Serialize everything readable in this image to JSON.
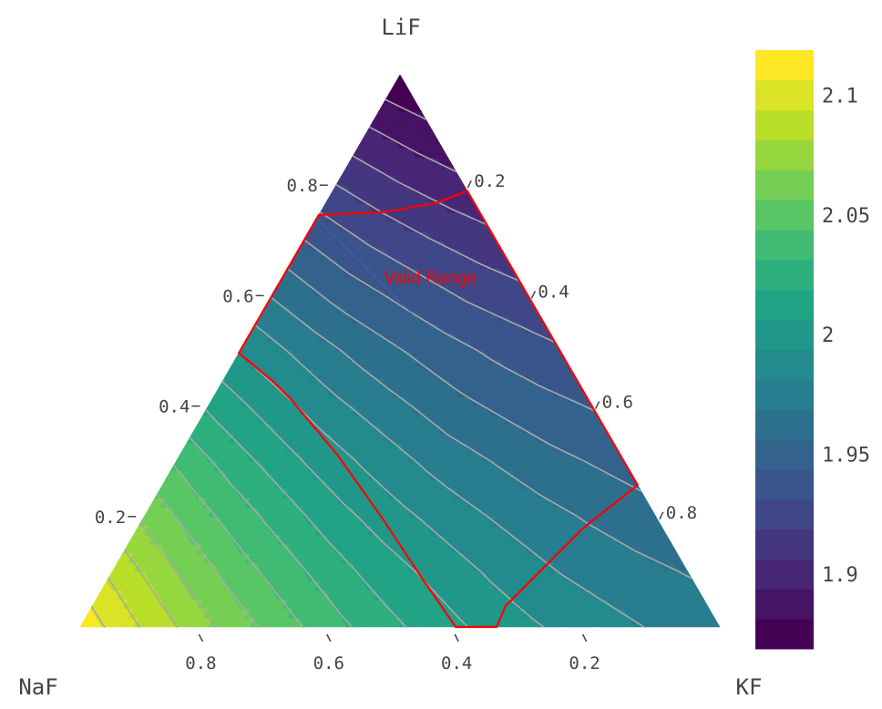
{
  "chart_data": {
    "type": "ternary-contour",
    "axes": {
      "top": {
        "title": "LiF",
        "ticks": [
          0.2,
          0.4,
          0.6,
          0.8
        ],
        "tick_labels": [
          "0.2",
          "0.4",
          "0.6",
          "0.8"
        ]
      },
      "left": {
        "title": "NaF",
        "ticks": [
          0.8,
          0.6,
          0.4,
          0.2
        ],
        "tick_labels": [
          "0.8",
          "0.6",
          "0.4",
          "0.2"
        ]
      },
      "right": {
        "title": "KF",
        "ticks": [
          0.2,
          0.4,
          0.6,
          0.8
        ],
        "tick_labels": [
          "0.2",
          "0.4",
          "0.6",
          "0.8"
        ]
      }
    },
    "field": {
      "grid_step": 0.1,
      "description_of_rows": "rows indexed by LiF fraction 0..1, columns by KF fraction 0..(1-LiF); NaF = 1 - LiF - KF",
      "values": [
        [
          2.115,
          2.092,
          2.071,
          2.052,
          2.035,
          2.02,
          2.007,
          1.996,
          1.987,
          1.98,
          1.975
        ],
        [
          2.091,
          2.069,
          2.049,
          2.032,
          2.016,
          2.003,
          1.991,
          1.981,
          1.974,
          1.968
        ],
        [
          2.066,
          2.046,
          2.028,
          2.011,
          1.997,
          1.985,
          1.975,
          1.967,
          1.96
        ],
        [
          2.042,
          2.023,
          2.006,
          1.991,
          1.978,
          1.968,
          1.959,
          1.952
        ],
        [
          2.017,
          2.0,
          1.984,
          1.971,
          1.959,
          1.95,
          1.943
        ],
        [
          1.993,
          1.977,
          1.963,
          1.951,
          1.941,
          1.933
        ],
        [
          1.968,
          1.953,
          1.941,
          1.93,
          1.922
        ],
        [
          1.944,
          1.93,
          1.919,
          1.91
        ],
        [
          1.919,
          1.907,
          1.897
        ],
        [
          1.895,
          1.884
        ],
        [
          1.87
        ]
      ]
    },
    "contours": {
      "start": 1.8688,
      "end": 2.1188,
      "levels": 20,
      "colorscale": "Viridis",
      "line_color": "#a8a8a8"
    },
    "colorbar": {
      "range": [
        1.8688,
        2.1188
      ],
      "ticks": [
        1.9,
        1.95,
        2,
        2.05,
        2.1
      ],
      "tick_labels": [
        "1.9",
        "1.95",
        "2",
        "2.05",
        "2.1"
      ]
    },
    "valid_range": {
      "label": "Valid Range",
      "color": "#ff0000",
      "boundary": [
        {
          "LiF": 0.746,
          "KF": 0.0,
          "NaF": 0.254
        },
        {
          "LiF": 0.751,
          "KF": 0.097,
          "NaF": 0.152
        },
        {
          "LiF": 0.768,
          "KF": 0.174,
          "NaF": 0.058
        },
        {
          "LiF": 0.79,
          "KF": 0.21,
          "NaF": 0.0
        },
        {
          "LiF": 0.257,
          "KF": 0.743,
          "NaF": 0.0
        },
        {
          "LiF": 0.179,
          "KF": 0.697,
          "NaF": 0.124
        },
        {
          "LiF": 0.113,
          "KF": 0.673,
          "NaF": 0.214
        },
        {
          "LiF": 0.038,
          "KF": 0.646,
          "NaF": 0.316
        },
        {
          "LiF": 0.0,
          "KF": 0.651,
          "NaF": 0.349
        },
        {
          "LiF": 0.0,
          "KF": 0.587,
          "NaF": 0.413
        },
        {
          "LiF": 0.096,
          "KF": 0.482,
          "NaF": 0.422
        },
        {
          "LiF": 0.196,
          "KF": 0.375,
          "NaF": 0.429
        },
        {
          "LiF": 0.312,
          "KF": 0.246,
          "NaF": 0.442
        },
        {
          "LiF": 0.411,
          "KF": 0.125,
          "NaF": 0.464
        },
        {
          "LiF": 0.444,
          "KF": 0.08,
          "NaF": 0.476
        },
        {
          "LiF": 0.496,
          "KF": 0.0,
          "NaF": 0.504
        }
      ]
    }
  }
}
